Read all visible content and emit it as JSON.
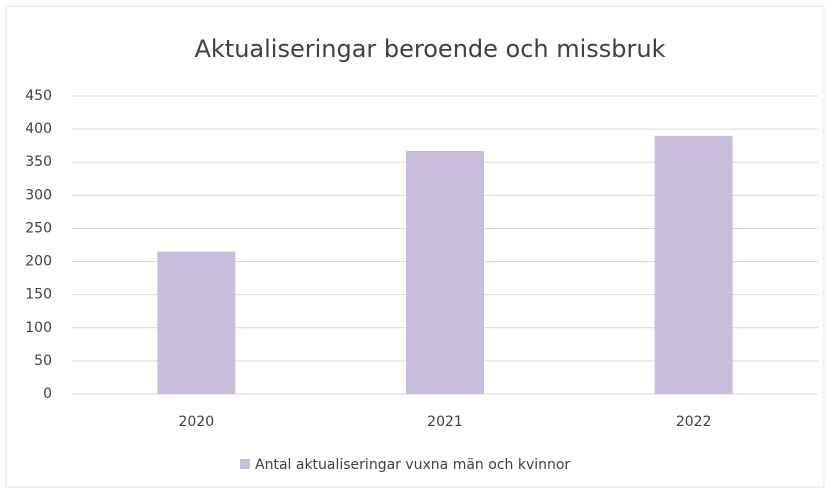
{
  "chart_data": {
    "type": "bar",
    "title": "Aktualiseringar beroende och missbruk",
    "categories": [
      "2020",
      "2021",
      "2022"
    ],
    "series": [
      {
        "name": "Antal aktualiseringar vuxna män och kvinnor",
        "color": "#c8bedc",
        "values": [
          215,
          367,
          390
        ]
      }
    ],
    "ylim": [
      0,
      450
    ],
    "yticks": [
      0,
      50,
      100,
      150,
      200,
      250,
      300,
      350,
      400,
      450
    ],
    "grid": true,
    "legend": "bottom"
  }
}
